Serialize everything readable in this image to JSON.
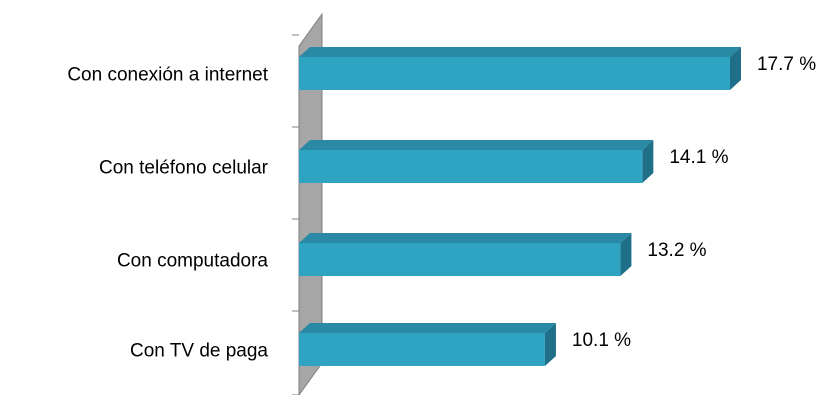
{
  "chart_data": {
    "type": "bar",
    "orientation": "horizontal",
    "categories": [
      "Con conexión a internet",
      "Con teléfono celular",
      "Con computadora",
      "Con TV de paga"
    ],
    "values": [
      17.7,
      14.1,
      13.2,
      10.1
    ],
    "value_labels": [
      "17.7 %",
      "14.1 %",
      "13.2 %",
      "10.1 %"
    ],
    "unit": "%",
    "title": "",
    "xlabel": "",
    "ylabel": "",
    "xlim": [
      0,
      20
    ],
    "grid": false,
    "legend": "none",
    "style": "3d",
    "colors": {
      "bar_front": "#2ea3c2",
      "bar_top": "#2a8aa6",
      "bar_side": "#1e6f87",
      "wall": "#a6a6a6",
      "wall_edge": "#7f7f7f"
    }
  }
}
